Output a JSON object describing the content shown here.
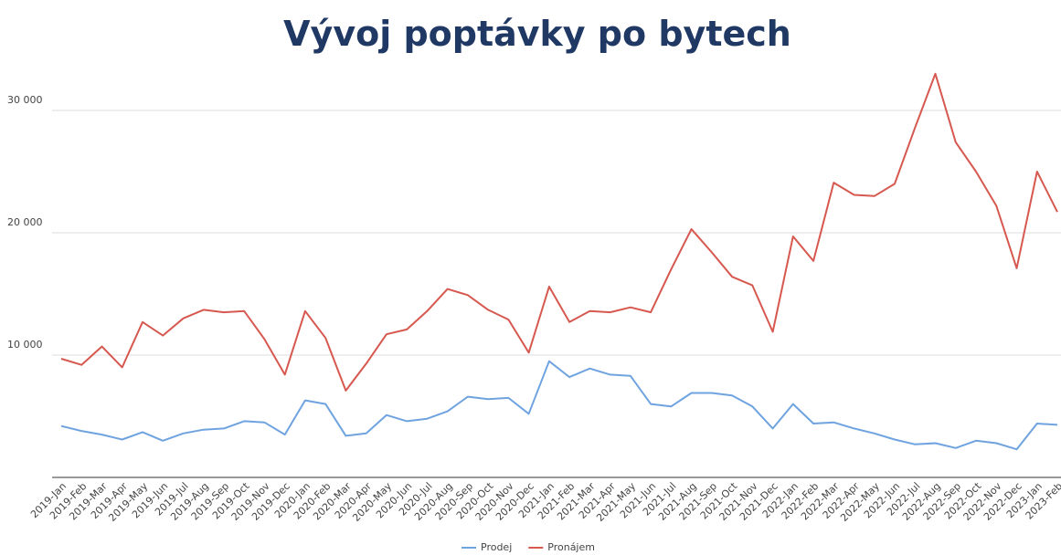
{
  "chart_data": {
    "type": "line",
    "title": "Vývoj poptávky po bytech",
    "categories": [
      "2019-Jan",
      "2019-Feb",
      "2019-Mar",
      "2019-Apr",
      "2019-May",
      "2019-Jun",
      "2019-Jul",
      "2019-Aug",
      "2019-Sep",
      "2019-Oct",
      "2019-Nov",
      "2019-Dec",
      "2020-Jan",
      "2020-Feb",
      "2020-Mar",
      "2020-Apr",
      "2020-May",
      "2020-Jun",
      "2020-Jul",
      "2020-Aug",
      "2020-Sep",
      "2020-Oct",
      "2020-Nov",
      "2020-Dec",
      "2021-Jan",
      "2021-Feb",
      "2021-Mar",
      "2021-Apr",
      "2021-May",
      "2021-Jun",
      "2021-Jul",
      "2021-Aug",
      "2021-Sep",
      "2021-Oct",
      "2021-Nov",
      "2021-Dec",
      "2022-Jan",
      "2022-Feb",
      "2022-Mar",
      "2022-Apr",
      "2022-May",
      "2022-Jun",
      "2022-Jul",
      "2022-Aug",
      "2022-Sep",
      "2022-Oct",
      "2022-Nov",
      "2022-Dec",
      "2023-Jan",
      "2023-Feb"
    ],
    "series": [
      {
        "name": "Prodej",
        "color": "#6fa3e0",
        "values": [
          4200,
          3800,
          3500,
          3100,
          3700,
          3000,
          3600,
          3900,
          4000,
          4600,
          4500,
          3500,
          6300,
          6000,
          3400,
          3600,
          5100,
          4600,
          4800,
          5400,
          6600,
          6400,
          6500,
          5200,
          9500,
          8200,
          8900,
          8400,
          8300,
          6000,
          5800,
          6900,
          6900,
          6700,
          5800,
          4000,
          6000,
          4400,
          4500,
          4000,
          3600,
          3100,
          2700,
          2800,
          2400,
          3000,
          2800,
          2300,
          4400,
          4300
        ]
      },
      {
        "name": "Pronájem",
        "color": "#d6584f",
        "values": [
          9700,
          9200,
          10700,
          9000,
          12700,
          11600,
          13000,
          13700,
          13500,
          13600,
          11300,
          8400,
          13600,
          11400,
          7100,
          9300,
          11700,
          12100,
          13600,
          15400,
          14900,
          13700,
          12900,
          10200,
          15600,
          12700,
          13600,
          13500,
          13900,
          13500,
          17000,
          20300,
          18400,
          16400,
          15700,
          11900,
          19700,
          17700,
          24100,
          23100,
          23000,
          24000,
          28600,
          33000,
          27400,
          25000,
          22200,
          17100,
          25000,
          21700
        ]
      }
    ],
    "ylim": [
      0,
      35000
    ],
    "yticks": [
      {
        "value": 10000,
        "label": "10 000"
      },
      {
        "value": 20000,
        "label": "20 000"
      },
      {
        "value": 30000,
        "label": "30 000"
      }
    ],
    "grid": true,
    "legend": "bottom"
  }
}
